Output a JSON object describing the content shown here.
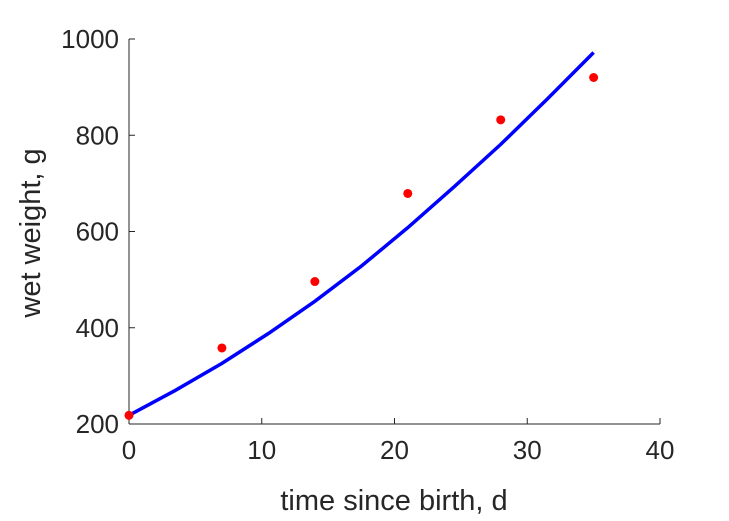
{
  "chart_data": {
    "type": "scatter",
    "xlabel": "time since birth, d",
    "ylabel": "wet weight, g",
    "xlim": [
      0,
      40
    ],
    "ylim": [
      200,
      1000
    ],
    "xticks": [
      0,
      10,
      20,
      30,
      40
    ],
    "yticks": [
      200,
      400,
      600,
      800,
      1000
    ],
    "grid": false,
    "series": [
      {
        "type": "scatter",
        "color": "#ff0000",
        "x": [
          0,
          7,
          14,
          21,
          28,
          35
        ],
        "y": [
          218,
          358,
          496,
          679,
          832,
          920
        ]
      },
      {
        "type": "line",
        "color": "#0000ff",
        "x": [
          0,
          3.5,
          7,
          10.5,
          14,
          17.5,
          21,
          24.5,
          28,
          31.5,
          35
        ],
        "y": [
          218,
          270,
          326,
          388,
          455,
          528,
          608,
          693,
          781,
          875,
          972
        ]
      }
    ]
  }
}
